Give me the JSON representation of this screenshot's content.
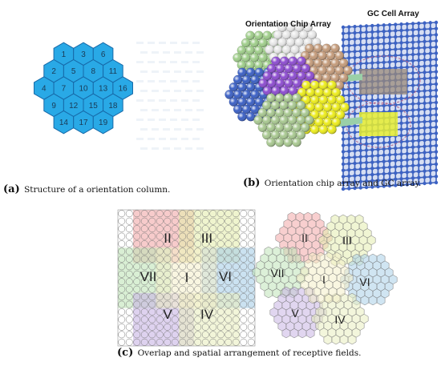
{
  "panel_a": {
    "cells": [
      {
        "label": "1",
        "q": 0,
        "r": -2
      },
      {
        "label": "2",
        "q": -1,
        "r": -1
      },
      {
        "label": "3",
        "q": 1,
        "r": -2
      },
      {
        "label": "4",
        "q": -2,
        "r": 0
      },
      {
        "label": "5",
        "q": 0,
        "r": -1
      },
      {
        "label": "6",
        "q": 2,
        "r": -2
      },
      {
        "label": "7",
        "q": -1,
        "r": 0
      },
      {
        "label": "8",
        "q": 1,
        "r": -1
      },
      {
        "label": "9",
        "q": -2,
        "r": 1
      },
      {
        "label": "10",
        "q": 0,
        "r": 0
      },
      {
        "label": "11",
        "q": 2,
        "r": -1
      },
      {
        "label": "12",
        "q": -1,
        "r": 1
      },
      {
        "label": "13",
        "q": 1,
        "r": 0
      },
      {
        "label": "14",
        "q": -2,
        "r": 2
      },
      {
        "label": "15",
        "q": 0,
        "r": 1
      },
      {
        "label": "16",
        "q": 2,
        "r": 0
      },
      {
        "label": "17",
        "q": -1,
        "r": 2
      },
      {
        "label": "18",
        "q": 1,
        "r": 1
      },
      {
        "label": "19",
        "q": 0,
        "r": 2
      }
    ],
    "fill": "#29a9e6",
    "stroke": "#1769a8",
    "caption_tag": "(a)",
    "caption_text": "Structure of a orientation column."
  },
  "panel_b": {
    "label_chip": "Orientation Chip Array",
    "label_gc": "GC Cell Array",
    "chip_colors": [
      "#8c4bd0",
      "#e7e7e7",
      "#c49b7a",
      "#ecec1a",
      "#9fce8a",
      "#3a5fc4",
      "#a8c890"
    ],
    "grid_color": "#3b5fb8",
    "caption_tag": "(b)",
    "caption_text": "Orientation chip array and GC array."
  },
  "panel_c": {
    "left_labels": [
      "II",
      "III",
      "VII",
      "I",
      "VI",
      "V",
      "IV"
    ],
    "right_labels": [
      "II",
      "III",
      "VII",
      "I",
      "VI",
      "V",
      "IV"
    ],
    "region_colors": {
      "I": "#f4eec8",
      "II": "#f2a8a8",
      "III": "#e4ecae",
      "IV": "#e9eebf",
      "V": "#c8b4e4",
      "VI": "#a9cfe8",
      "VII": "#bfe4b8"
    },
    "caption_tag": "(c)",
    "caption_text": "Overlap and spatial arrangement of receptive fields."
  }
}
